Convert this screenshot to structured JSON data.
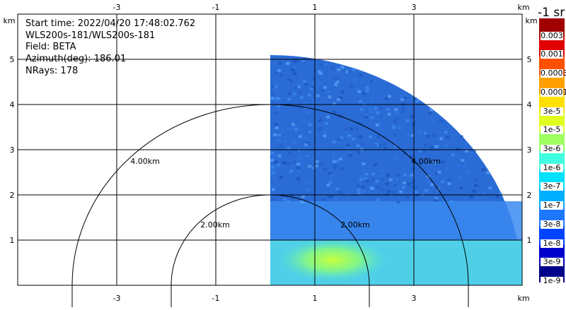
{
  "info": {
    "start_time": "Start time: 2022/04/20 17:48:02.762",
    "instrument": "WLS200s-181/WLS200s-181",
    "field": "Field: BETA",
    "azimuth": "Azimuth(deg): 186.01",
    "nrays": "NRays: 178"
  },
  "axes": {
    "unit": "km",
    "x_ticks": [
      "-3",
      "-1",
      "1",
      "3"
    ],
    "y_ticks": [
      "1",
      "2",
      "3",
      "4",
      "5"
    ]
  },
  "range_rings": [
    "2.00km",
    "4.00km"
  ],
  "colorbar": {
    "title": "-1 sr",
    "labels": [
      "1e-9",
      "3e-9",
      "1e-8",
      "3e-8",
      "1e-7",
      "3e-7",
      "1e-6",
      "3e-6",
      "1e-5",
      "3e-5",
      "0.0001",
      "0.0003",
      "0.001",
      "0.003"
    ],
    "colors": [
      "#00008b",
      "#0000cd",
      "#0044ff",
      "#1e78ff",
      "#00b0ff",
      "#00e0ff",
      "#40ffe0",
      "#a0ff60",
      "#e0ff20",
      "#ffe000",
      "#ffa000",
      "#ff5000",
      "#e00000",
      "#a00000"
    ]
  },
  "field_colors": {
    "far": "#2a6bd6",
    "mid": "#3a8af0",
    "near": "#4fd0e8",
    "core": "#c0ff40"
  }
}
